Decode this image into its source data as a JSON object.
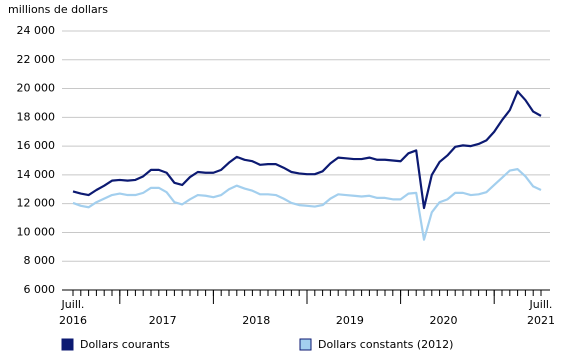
{
  "chart_data": {
    "type": "line",
    "y_axis_label": "millions de dollars",
    "categories": [
      "Juill. 2016",
      null,
      null,
      null,
      null,
      null,
      null,
      null,
      null,
      null,
      null,
      null,
      null,
      null,
      null,
      null,
      null,
      null,
      null,
      null,
      null,
      null,
      null,
      null,
      null,
      null,
      null,
      null,
      null,
      null,
      null,
      null,
      null,
      null,
      null,
      null,
      null,
      null,
      null,
      null,
      null,
      null,
      null,
      null,
      null,
      null,
      null,
      null,
      null,
      null,
      null,
      null,
      null,
      null,
      null,
      null,
      null,
      null,
      null,
      null,
      "Juill. 2021"
    ],
    "x_group_labels": [
      "2017",
      "2018",
      "2019",
      "2020"
    ],
    "series": [
      {
        "name": "Dollars courants",
        "color": "#0c1a72",
        "values": [
          12850,
          12700,
          12600,
          12950,
          13250,
          13600,
          13650,
          13600,
          13650,
          13900,
          14350,
          14350,
          14150,
          13450,
          13300,
          13850,
          14200,
          14150,
          14150,
          14350,
          14850,
          15250,
          15050,
          14950,
          14700,
          14750,
          14750,
          14500,
          14200,
          14100,
          14050,
          14050,
          14250,
          14800,
          15200,
          15150,
          15100,
          15100,
          15200,
          15050,
          15050,
          15000,
          14950,
          15500,
          15700,
          11700,
          14000,
          14900,
          15350,
          15950,
          16050,
          16000,
          16150,
          16400,
          17000,
          17800,
          18500,
          19800,
          19200,
          18400,
          18100
        ]
      },
      {
        "name": "Dollars constants (2012)",
        "color": "#a3cfee",
        "values": [
          12050,
          11850,
          11750,
          12100,
          12350,
          12600,
          12700,
          12600,
          12600,
          12750,
          13100,
          13100,
          12800,
          12100,
          11950,
          12300,
          12600,
          12550,
          12450,
          12600,
          13000,
          13250,
          13050,
          12900,
          12650,
          12650,
          12600,
          12350,
          12050,
          11900,
          11850,
          11800,
          11900,
          12350,
          12650,
          12600,
          12550,
          12500,
          12550,
          12400,
          12400,
          12300,
          12300,
          12700,
          12750,
          9500,
          11400,
          12100,
          12300,
          12750,
          12750,
          12600,
          12650,
          12800,
          13300,
          13800,
          14300,
          14400,
          13900,
          13200,
          12950
        ]
      }
    ],
    "ylim": [
      6000,
      24000
    ],
    "yticks": [
      {
        "value": 6000,
        "label": "6 000"
      },
      {
        "value": 8000,
        "label": "8 000"
      },
      {
        "value": 10000,
        "label": "10 000"
      },
      {
        "value": 12000,
        "label": "12 000"
      },
      {
        "value": 14000,
        "label": "14 000"
      },
      {
        "value": 16000,
        "label": "16 000"
      },
      {
        "value": 18000,
        "label": "18 000"
      },
      {
        "value": 20000,
        "label": "20 000"
      },
      {
        "value": 22000,
        "label": "22 000"
      },
      {
        "value": 24000,
        "label": "24 000"
      }
    ],
    "grid": true
  }
}
